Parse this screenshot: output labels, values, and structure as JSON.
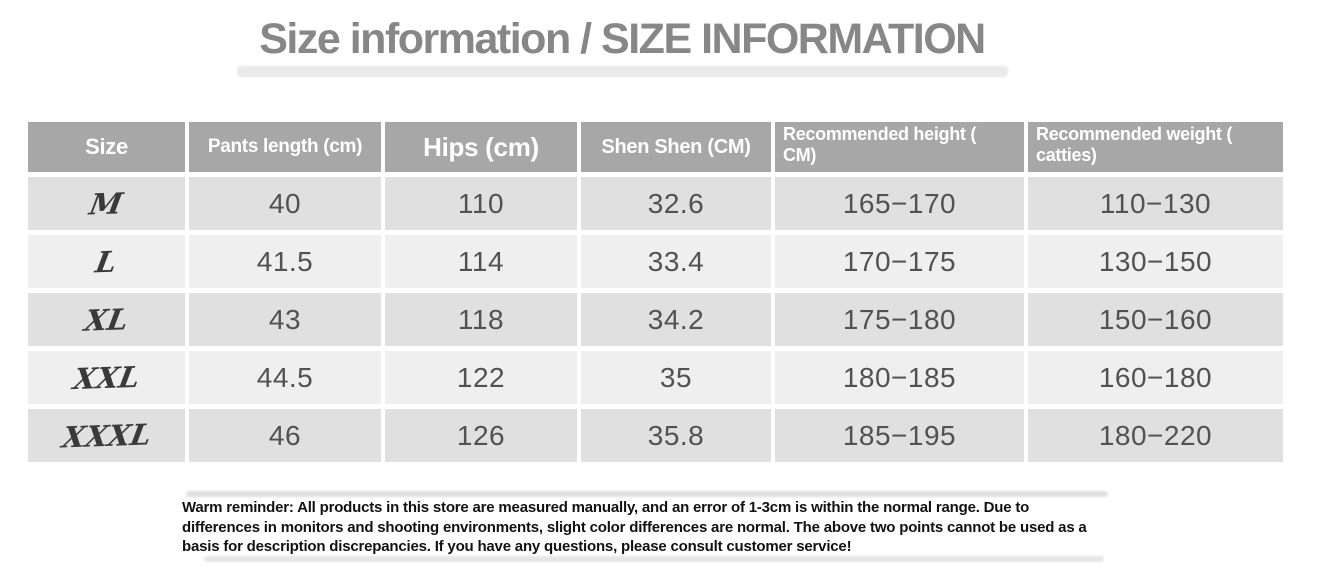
{
  "page": {
    "title": "Size information / SIZE INFORMATION"
  },
  "size_table": {
    "columns": [
      {
        "label": "Size"
      },
      {
        "label": "Pants length (cm)"
      },
      {
        "label": "Hips (cm)"
      },
      {
        "label": "Shen Shen (CM)"
      },
      {
        "label": "Recommended height (\nCM)"
      },
      {
        "label": "Recommended weight (\ncatties)"
      }
    ],
    "rows": [
      {
        "size": "M",
        "pants": "40",
        "hips": "110",
        "shen": "32.6",
        "height": "165−170",
        "weight": "110−130"
      },
      {
        "size": "L",
        "pants": "41.5",
        "hips": "114",
        "shen": "33.4",
        "height": "170−175",
        "weight": "130−150"
      },
      {
        "size": "XL",
        "pants": "43",
        "hips": "118",
        "shen": "34.2",
        "height": "175−180",
        "weight": "150−160"
      },
      {
        "size": "XXL",
        "pants": "44.5",
        "hips": "122",
        "shen": "35",
        "height": "180−185",
        "weight": "160−180"
      },
      {
        "size": "XXXL",
        "pants": "46",
        "hips": "126",
        "shen": "35.8",
        "height": "185−195",
        "weight": "180−220"
      }
    ]
  },
  "footer": {
    "reminder": "Warm reminder: All products in this store are measured manually, and an error of 1-3cm is within the normal range. Due to differences in monitors and shooting environments, slight color differences are normal. The above two points cannot be used as a basis for description discrepancies. If you have any questions, please consult customer service!"
  },
  "colors": {
    "header_background": "#a7a7a7",
    "header_text": "#ffffff",
    "row_dark": "#e0e0e0",
    "row_light": "#efefef",
    "title_text": "#878787",
    "value_text": "#525252",
    "reminder_text": "#121212"
  }
}
